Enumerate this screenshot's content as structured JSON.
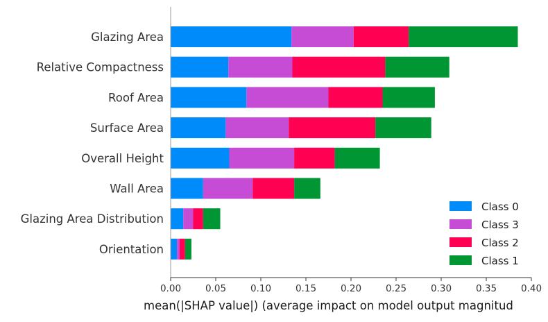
{
  "colors": {
    "Class 0": "#008bfb",
    "Class 3": "#c64cd6",
    "Class 2": "#ff0052",
    "Class 1": "#009633"
  },
  "chart_data": {
    "type": "bar",
    "orientation": "horizontal",
    "stacked": true,
    "title": "",
    "xlabel": "mean(|SHAP value|) (average impact on model output magnitud",
    "ylabel": "",
    "xlim": [
      0.0,
      0.4
    ],
    "xticks": [
      "0.00",
      "0.05",
      "0.10",
      "0.15",
      "0.20",
      "0.25",
      "0.30",
      "0.35",
      "0.40"
    ],
    "xtick_values": [
      0.0,
      0.05,
      0.1,
      0.15,
      0.2,
      0.25,
      0.3,
      0.35,
      0.4
    ],
    "grid": false,
    "legend_position": "bottom-right",
    "categories": [
      "Glazing Area",
      "Relative Compactness",
      "Roof Area",
      "Surface Area",
      "Overall Height",
      "Wall Area",
      "Glazing Area Distribution",
      "Orientation"
    ],
    "series": [
      {
        "name": "Class 0",
        "values": [
          0.134,
          0.064,
          0.084,
          0.061,
          0.065,
          0.036,
          0.014,
          0.007
        ]
      },
      {
        "name": "Class 3",
        "values": [
          0.069,
          0.071,
          0.091,
          0.07,
          0.072,
          0.055,
          0.011,
          0.003
        ]
      },
      {
        "name": "Class 2",
        "values": [
          0.061,
          0.103,
          0.06,
          0.096,
          0.045,
          0.046,
          0.011,
          0.006
        ]
      },
      {
        "name": "Class 1",
        "values": [
          0.121,
          0.071,
          0.058,
          0.062,
          0.05,
          0.029,
          0.019,
          0.007
        ]
      }
    ],
    "legend_order": [
      "Class 0",
      "Class 3",
      "Class 2",
      "Class 1"
    ]
  }
}
